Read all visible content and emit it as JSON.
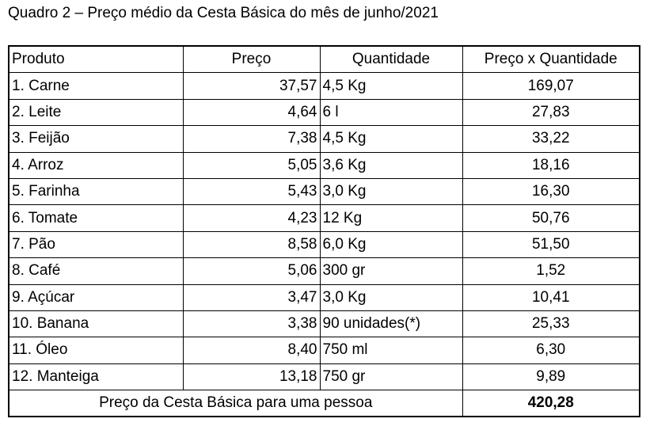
{
  "title": "Quadro 2 – Preço médio da Cesta Básica do mês de junho/2021",
  "table": {
    "header": [
      "Produto",
      "Preço",
      "Quantidade",
      "Preço x Quantidade"
    ],
    "rows": [
      [
        "1. Carne",
        "37,57",
        "4,5 Kg",
        "169,07"
      ],
      [
        "2. Leite",
        "4,64",
        "6 l",
        "27,83"
      ],
      [
        "3. Feijão",
        "7,38",
        "4,5 Kg",
        "33,22"
      ],
      [
        "4. Arroz",
        "5,05",
        "3,6 Kg",
        "18,16"
      ],
      [
        "5. Farinha",
        "5,43",
        "3,0 Kg",
        "16,30"
      ],
      [
        "6. Tomate",
        "4,23",
        "12 Kg",
        "50,76"
      ],
      [
        "7. Pão",
        "8,58",
        "6,0 Kg",
        "51,50"
      ],
      [
        "8. Café",
        "5,06",
        "300 gr",
        "1,52"
      ],
      [
        "9. Açúcar",
        "3,47",
        "3,0 Kg",
        "10,41"
      ],
      [
        "10. Banana",
        "3,38",
        "90 unidades(*)",
        "25,33"
      ],
      [
        "11. Óleo",
        "8,40",
        "750 ml",
        "6,30"
      ],
      [
        "12. Manteiga",
        "13,18",
        "750 gr",
        "9,89"
      ]
    ],
    "footer": {
      "label": "Preço da Cesta Básica para uma pessoa",
      "total": "420,28"
    }
  }
}
